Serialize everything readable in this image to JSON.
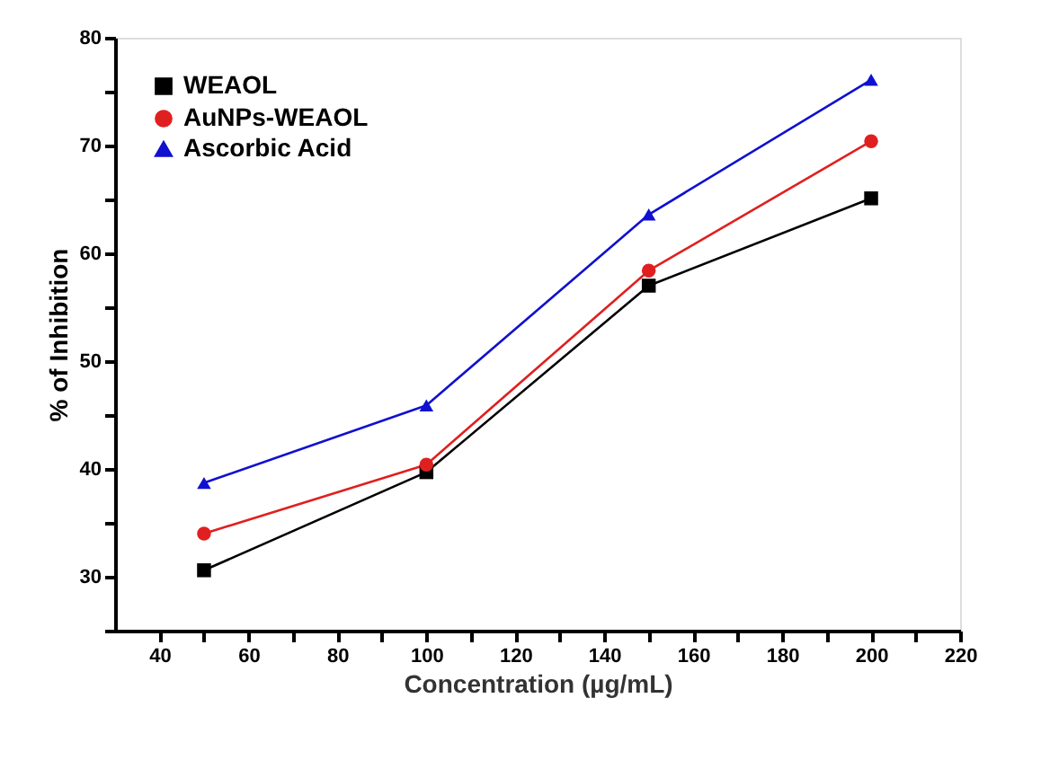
{
  "chart_data": {
    "type": "line",
    "xlabel": "Concentration (µg/mL)",
    "ylabel": "% of Inhibition",
    "x": [
      50,
      100,
      150,
      200
    ],
    "series": [
      {
        "name": "WEAOL",
        "color": "#000000",
        "marker": "square",
        "values": [
          30.6,
          39.7,
          57,
          65.1
        ]
      },
      {
        "name": "AuNPs-WEAOL",
        "color": "#e02020",
        "marker": "circle",
        "values": [
          34,
          40.4,
          58.4,
          70.4
        ]
      },
      {
        "name": "Ascorbic Acid",
        "color": "#1010d0",
        "marker": "triangle",
        "values": [
          38.7,
          45.9,
          63.6,
          76.1
        ]
      }
    ],
    "xlim": [
      30,
      220
    ],
    "xticks": [
      40,
      {
        "value": 50,
        "label": null
      },
      60,
      {
        "value": 70,
        "label": null
      },
      80,
      {
        "value": 90,
        "label": null
      },
      100,
      {
        "value": 110,
        "label": null
      },
      120,
      {
        "value": 130,
        "label": null
      },
      140,
      {
        "value": 150,
        "label": null
      },
      160,
      {
        "value": 170,
        "label": null
      },
      180,
      {
        "value": 190,
        "label": null
      },
      200,
      {
        "value": 210,
        "label": null
      },
      220
    ],
    "ylim": [
      25,
      80
    ],
    "yticks": [
      {
        "value": 25,
        "label": null
      },
      30,
      {
        "value": 35,
        "label": null
      },
      40,
      {
        "value": 45,
        "label": null
      },
      50,
      {
        "value": 55,
        "label": null
      },
      60,
      {
        "value": 65,
        "label": null
      },
      70,
      {
        "value": 75,
        "label": null
      },
      80
    ],
    "grid": false,
    "legend": "top left",
    "line_style": "solid"
  }
}
